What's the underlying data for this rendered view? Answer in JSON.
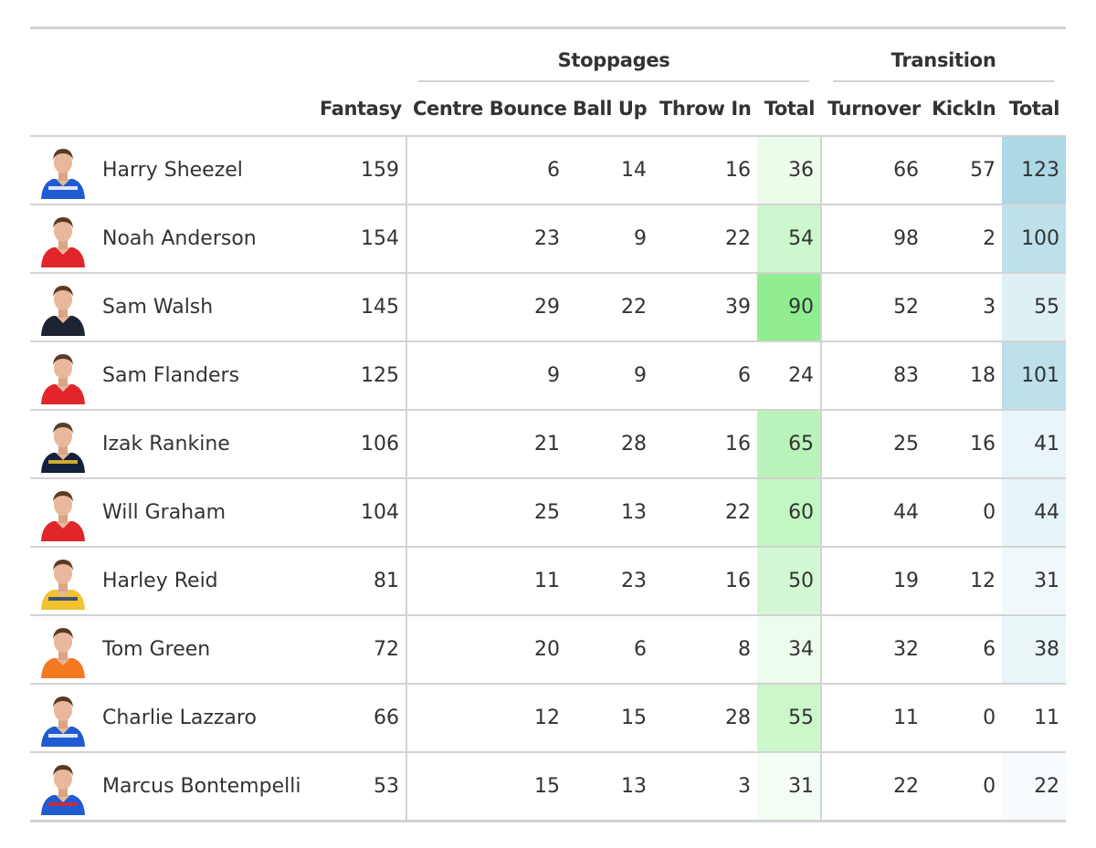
{
  "chart_data": {
    "type": "table",
    "column_groups": [
      {
        "label": "Stoppages",
        "columns": [
          "Centre Bounce",
          "Ball Up",
          "Throw In",
          "Total"
        ]
      },
      {
        "label": "Transition",
        "columns": [
          "Turnover",
          "KickIn",
          "Total"
        ]
      }
    ],
    "columns": [
      "",
      "",
      "Fantasy",
      "Centre Bounce",
      "Ball Up",
      "Throw In",
      "Total",
      "Turnover",
      "KickIn",
      "Total"
    ],
    "rows": [
      {
        "name": "Harry Sheezel",
        "fantasy": 159,
        "centre_bounce": 6,
        "ball_up": 14,
        "throw_in": 16,
        "stoppage_total": 36,
        "turnover": 66,
        "kickin": 57,
        "transition_total": 123,
        "jersey": "#1f5bd1",
        "stripe": "#ffffff"
      },
      {
        "name": "Noah Anderson",
        "fantasy": 154,
        "centre_bounce": 23,
        "ball_up": 9,
        "throw_in": 22,
        "stoppage_total": 54,
        "turnover": 98,
        "kickin": 2,
        "transition_total": 100,
        "jersey": "#e0262b",
        "stripe": "#e0262b"
      },
      {
        "name": "Sam Walsh",
        "fantasy": 145,
        "centre_bounce": 29,
        "ball_up": 22,
        "throw_in": 39,
        "stoppage_total": 90,
        "turnover": 52,
        "kickin": 3,
        "transition_total": 55,
        "jersey": "#1c2333",
        "stripe": "#1c2333"
      },
      {
        "name": "Sam Flanders",
        "fantasy": 125,
        "centre_bounce": 9,
        "ball_up": 9,
        "throw_in": 6,
        "stoppage_total": 24,
        "turnover": 83,
        "kickin": 18,
        "transition_total": 101,
        "jersey": "#e0262b",
        "stripe": "#e0262b"
      },
      {
        "name": "Izak Rankine",
        "fantasy": 106,
        "centre_bounce": 21,
        "ball_up": 28,
        "throw_in": 16,
        "stoppage_total": 65,
        "turnover": 25,
        "kickin": 16,
        "transition_total": 41,
        "jersey": "#14213d",
        "stripe": "#f2c230"
      },
      {
        "name": "Will Graham",
        "fantasy": 104,
        "centre_bounce": 25,
        "ball_up": 13,
        "throw_in": 22,
        "stoppage_total": 60,
        "turnover": 44,
        "kickin": 0,
        "transition_total": 44,
        "jersey": "#e0262b",
        "stripe": "#e0262b"
      },
      {
        "name": "Harley Reid",
        "fantasy": 81,
        "centre_bounce": 11,
        "ball_up": 23,
        "throw_in": 16,
        "stoppage_total": 50,
        "turnover": 19,
        "kickin": 12,
        "transition_total": 31,
        "jersey": "#f2c230",
        "stripe": "#1b3f8b"
      },
      {
        "name": "Tom Green",
        "fantasy": 72,
        "centre_bounce": 20,
        "ball_up": 6,
        "throw_in": 8,
        "stoppage_total": 34,
        "turnover": 32,
        "kickin": 6,
        "transition_total": 38,
        "jersey": "#f47920",
        "stripe": "#f47920"
      },
      {
        "name": "Charlie Lazzaro",
        "fantasy": 66,
        "centre_bounce": 12,
        "ball_up": 15,
        "throw_in": 28,
        "stoppage_total": 55,
        "turnover": 11,
        "kickin": 0,
        "transition_total": 11,
        "jersey": "#1f5bd1",
        "stripe": "#ffffff"
      },
      {
        "name": "Marcus Bontempelli",
        "fantasy": 53,
        "centre_bounce": 15,
        "ball_up": 13,
        "throw_in": 3,
        "stoppage_total": 31,
        "turnover": 22,
        "kickin": 0,
        "transition_total": 22,
        "jersey": "#1f5bd1",
        "stripe": "#e0262b"
      }
    ],
    "color_scales": {
      "stoppage_total": {
        "domain": [
          24,
          90
        ],
        "from": "#ffffff",
        "to": "#90ee90"
      },
      "transition_total": {
        "domain": [
          11,
          123
        ],
        "from": "#ffffff",
        "to": "#add8e6"
      }
    }
  }
}
